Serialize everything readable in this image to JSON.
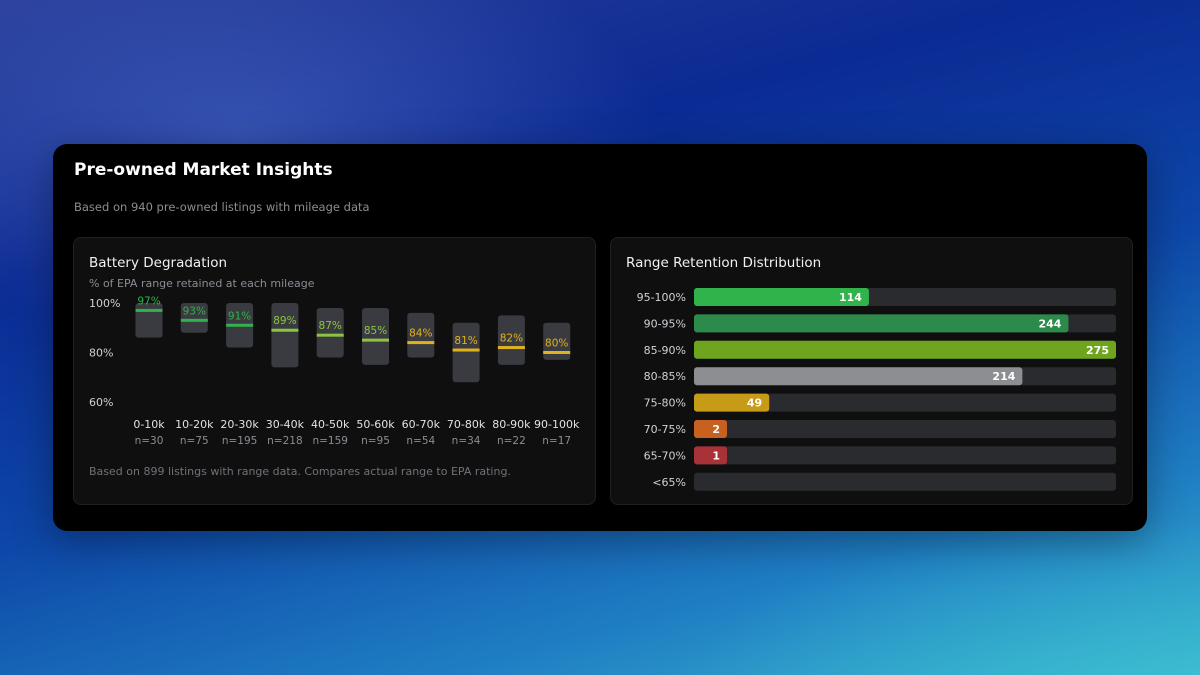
{
  "card": {
    "title": "Pre-owned Market Insights",
    "subtitle": "Based on 940 pre-owned listings with mileage data"
  },
  "left_panel": {
    "title": "Battery Degradation",
    "subtitle": "% of EPA range retained at each mileage",
    "footnote": "Based on 899 listings with range data. Compares actual range to EPA rating."
  },
  "right_panel": {
    "title": "Range Retention Distribution"
  },
  "colors": {
    "green": "#2fb34a",
    "lime": "#8bc53f",
    "gold": "#e0b21c",
    "box": "#3a3b40",
    "track": "#2a2b2f"
  },
  "chart_data": [
    {
      "type": "bar",
      "title": "Battery Degradation",
      "subtitle": "% of EPA range retained at each mileage",
      "y_ticks": [
        "100%",
        "80%",
        "60%"
      ],
      "ylim": [
        60,
        100
      ],
      "categories": [
        "0-10k",
        "10-20k",
        "20-30k",
        "30-40k",
        "40-50k",
        "50-60k",
        "60-70k",
        "70-80k",
        "80-90k",
        "90-100k"
      ],
      "counts": [
        "n=30",
        "n=75",
        "n=195",
        "n=218",
        "n=159",
        "n=95",
        "n=54",
        "n=34",
        "n=22",
        "n=17"
      ],
      "median": [
        97,
        93,
        91,
        89,
        87,
        85,
        84,
        81,
        82,
        80
      ],
      "labels": [
        "97%",
        "93%",
        "91%",
        "89%",
        "87%",
        "85%",
        "84%",
        "81%",
        "82%",
        "80%"
      ],
      "low": [
        86,
        88,
        82,
        74,
        78,
        75,
        78,
        68,
        75,
        77
      ],
      "high": [
        100,
        100,
        100,
        100,
        98,
        98,
        96,
        92,
        95,
        92
      ],
      "marker_colors": [
        "green",
        "green",
        "green",
        "lime",
        "lime",
        "lime",
        "gold",
        "gold",
        "gold",
        "gold"
      ]
    },
    {
      "type": "bar",
      "orientation": "horizontal",
      "title": "Range Retention Distribution",
      "categories": [
        "95-100%",
        "90-95%",
        "85-90%",
        "80-85%",
        "75-80%",
        "70-75%",
        "65-70%",
        "<65%"
      ],
      "values": [
        114,
        244,
        275,
        214,
        49,
        2,
        1,
        0
      ],
      "value_labels": [
        "114",
        "244",
        "275",
        "214",
        "49",
        "2",
        "1",
        ""
      ],
      "bar_colors": [
        "#2fb34a",
        "#2c8a4a",
        "#6fa41e",
        "#8d8e92",
        "#c79a18",
        "#c8611f",
        "#a83238",
        "#2a2b2f"
      ],
      "xlim": [
        0,
        275
      ]
    }
  ]
}
